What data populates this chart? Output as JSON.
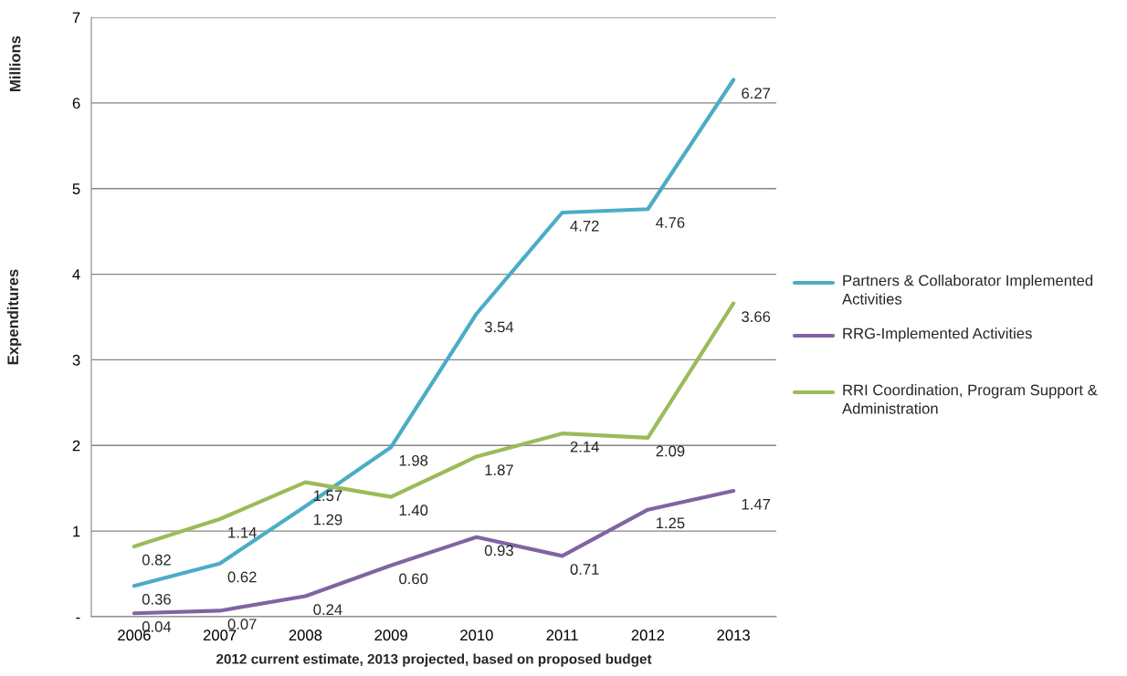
{
  "chart_data": {
    "type": "line",
    "xlabel": "2012 current estimate, 2013 projected, based on proposed budget",
    "ylabel": "Expenditures",
    "annotations": [
      "Millions"
    ],
    "categories": [
      "2006",
      "2007",
      "2008",
      "2009",
      "2010",
      "2011",
      "2012",
      "2013"
    ],
    "series": [
      {
        "name": "Partners & Collaborator Implemented Activities",
        "color": "#4bacc6",
        "values": [
          0.36,
          0.62,
          1.29,
          1.98,
          3.54,
          4.72,
          4.76,
          6.27
        ],
        "value_labels": [
          "0.36",
          "0.62",
          "1.29",
          "1.98",
          "3.54",
          "4.72",
          "4.76",
          "6.27"
        ]
      },
      {
        "name": "RRG-Implemented Activities",
        "color": "#8064a2",
        "values": [
          0.04,
          0.07,
          0.24,
          0.6,
          0.93,
          0.71,
          1.25,
          1.47
        ],
        "value_labels": [
          "0.04",
          "0.07",
          "0.24",
          "0.60",
          "0.93",
          "0.71",
          "1.25",
          "1.47"
        ]
      },
      {
        "name": "RRI Coordination, Program Support & Administration",
        "color": "#9bbb59",
        "values": [
          0.82,
          1.14,
          1.57,
          1.4,
          1.87,
          2.14,
          2.09,
          3.66
        ],
        "value_labels": [
          "0.82",
          "1.14",
          "1.57",
          "1.40",
          "1.87",
          "2.14",
          "2.09",
          "3.66"
        ]
      }
    ],
    "ylim": [
      0,
      7
    ],
    "yticks": [
      {
        "value": 0,
        "label": "-"
      },
      1,
      2,
      3,
      4,
      5,
      6,
      7
    ],
    "grid": "y",
    "legend": "right",
    "line_style": "solid",
    "marker": "none"
  }
}
